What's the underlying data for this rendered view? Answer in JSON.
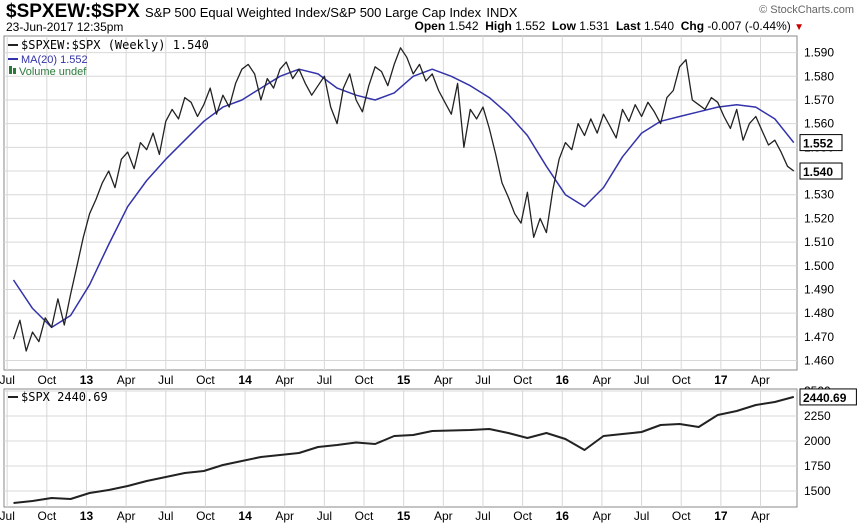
{
  "header": {
    "symbol": "$SPXEW:$SPX",
    "description": "S&P 500 Equal Weighted Index/S&P 500 Large Cap Index",
    "exchange": "INDX",
    "brand": "© StockCharts.com",
    "datetime": "23-Jun-2017 12:35pm",
    "open_label": "Open",
    "open": "1.542",
    "high_label": "High",
    "high": "1.552",
    "low_label": "Low",
    "low": "1.531",
    "last_label": "Last",
    "last": "1.540",
    "chg_label": "Chg",
    "chg": "-0.007 (-0.44%)",
    "chg_marker": "▼"
  },
  "colors": {
    "price": "#222222",
    "ma": "#3333aa",
    "grid": "#d8d8d8",
    "volume_legend": "#2a7a3a"
  },
  "chart_data": [
    {
      "type": "line",
      "legend": [
        "$SPXEW:$SPX (Weekly) 1.540",
        "MA(20) 1.552",
        "Volume undef"
      ],
      "series": [
        {
          "name": "$SPXEW:$SPX (Weekly)",
          "x": [
            2012.54,
            2012.58,
            2012.62,
            2012.66,
            2012.7,
            2012.74,
            2012.78,
            2012.82,
            2012.86,
            2012.9,
            2012.94,
            2012.98,
            2013.02,
            2013.06,
            2013.1,
            2013.14,
            2013.18,
            2013.22,
            2013.26,
            2013.3,
            2013.34,
            2013.38,
            2013.42,
            2013.46,
            2013.5,
            2013.54,
            2013.58,
            2013.62,
            2013.66,
            2013.7,
            2013.74,
            2013.78,
            2013.82,
            2013.86,
            2013.9,
            2013.94,
            2013.98,
            2014.02,
            2014.06,
            2014.1,
            2014.14,
            2014.18,
            2014.22,
            2014.26,
            2014.3,
            2014.34,
            2014.38,
            2014.42,
            2014.46,
            2014.5,
            2014.54,
            2014.58,
            2014.62,
            2014.66,
            2014.7,
            2014.74,
            2014.78,
            2014.82,
            2014.86,
            2014.9,
            2014.94,
            2014.98,
            2015.02,
            2015.06,
            2015.1,
            2015.14,
            2015.18,
            2015.22,
            2015.26,
            2015.3,
            2015.34,
            2015.38,
            2015.42,
            2015.46,
            2015.5,
            2015.54,
            2015.58,
            2015.62,
            2015.66,
            2015.7,
            2015.74,
            2015.78,
            2015.82,
            2015.86,
            2015.9,
            2015.94,
            2015.98,
            2016.02,
            2016.06,
            2016.1,
            2016.14,
            2016.18,
            2016.22,
            2016.26,
            2016.3,
            2016.34,
            2016.38,
            2016.42,
            2016.46,
            2016.5,
            2016.54,
            2016.58,
            2016.62,
            2016.66,
            2016.7,
            2016.74,
            2016.78,
            2016.82,
            2016.86,
            2016.9,
            2016.94,
            2016.98,
            2017.02,
            2017.06,
            2017.1,
            2017.14,
            2017.18,
            2017.22,
            2017.26,
            2017.3,
            2017.34,
            2017.38,
            2017.42,
            2017.46
          ],
          "values": [
            1.469,
            1.477,
            1.464,
            1.472,
            1.468,
            1.478,
            1.474,
            1.486,
            1.475,
            1.488,
            1.5,
            1.512,
            1.522,
            1.528,
            1.535,
            1.54,
            1.533,
            1.545,
            1.548,
            1.541,
            1.552,
            1.549,
            1.556,
            1.547,
            1.561,
            1.566,
            1.562,
            1.571,
            1.569,
            1.563,
            1.568,
            1.575,
            1.564,
            1.572,
            1.567,
            1.577,
            1.583,
            1.585,
            1.581,
            1.57,
            1.579,
            1.575,
            1.583,
            1.586,
            1.579,
            1.583,
            1.577,
            1.572,
            1.576,
            1.58,
            1.567,
            1.56,
            1.575,
            1.581,
            1.57,
            1.565,
            1.576,
            1.584,
            1.582,
            1.576,
            1.585,
            1.592,
            1.588,
            1.581,
            1.585,
            1.578,
            1.581,
            1.574,
            1.569,
            1.564,
            1.577,
            1.55,
            1.566,
            1.562,
            1.567,
            1.558,
            1.547,
            1.535,
            1.529,
            1.522,
            1.518,
            1.531,
            1.512,
            1.52,
            1.514,
            1.532,
            1.545,
            1.552,
            1.549,
            1.56,
            1.555,
            1.562,
            1.556,
            1.564,
            1.559,
            1.554,
            1.566,
            1.561,
            1.568,
            1.563,
            1.569,
            1.565,
            1.56,
            1.571,
            1.574,
            1.584,
            1.587,
            1.57,
            1.568,
            1.566,
            1.571,
            1.569,
            1.563,
            1.558,
            1.566,
            1.553,
            1.56,
            1.563,
            1.557,
            1.551,
            1.553,
            1.548,
            1.542,
            1.54
          ]
        },
        {
          "name": "MA(20)",
          "x": [
            2012.54,
            2012.66,
            2012.78,
            2012.9,
            2013.02,
            2013.14,
            2013.26,
            2013.38,
            2013.5,
            2013.62,
            2013.74,
            2013.86,
            2013.98,
            2014.1,
            2014.22,
            2014.34,
            2014.46,
            2014.58,
            2014.7,
            2014.82,
            2014.94,
            2015.06,
            2015.18,
            2015.3,
            2015.42,
            2015.54,
            2015.66,
            2015.78,
            2015.9,
            2016.02,
            2016.14,
            2016.26,
            2016.38,
            2016.5,
            2016.62,
            2016.74,
            2016.86,
            2016.98,
            2017.1,
            2017.22,
            2017.34,
            2017.46
          ],
          "values": [
            1.494,
            1.482,
            1.474,
            1.479,
            1.492,
            1.509,
            1.525,
            1.536,
            1.545,
            1.553,
            1.561,
            1.567,
            1.57,
            1.575,
            1.58,
            1.583,
            1.581,
            1.575,
            1.572,
            1.57,
            1.573,
            1.58,
            1.583,
            1.58,
            1.576,
            1.571,
            1.564,
            1.555,
            1.542,
            1.53,
            1.525,
            1.533,
            1.546,
            1.556,
            1.561,
            1.563,
            1.565,
            1.567,
            1.568,
            1.567,
            1.562,
            1.552
          ]
        }
      ],
      "y_ticks": [
        "1.460",
        "1.470",
        "1.480",
        "1.490",
        "1.500",
        "1.510",
        "1.520",
        "1.530",
        "1.540",
        "1.550",
        "1.560",
        "1.570",
        "1.580",
        "1.590"
      ],
      "ylim": [
        1.456,
        1.597
      ],
      "last_tag_price": "1.540",
      "last_tag_ma": "1.552",
      "grid": true,
      "legend_position": "top-left"
    },
    {
      "type": "line",
      "legend": [
        "$SPX 2440.69"
      ],
      "series": [
        {
          "name": "$SPX",
          "x": [
            2012.54,
            2012.66,
            2012.78,
            2012.9,
            2013.02,
            2013.14,
            2013.26,
            2013.38,
            2013.5,
            2013.62,
            2013.74,
            2013.86,
            2013.98,
            2014.1,
            2014.22,
            2014.34,
            2014.46,
            2014.58,
            2014.7,
            2014.82,
            2014.94,
            2015.06,
            2015.18,
            2015.3,
            2015.42,
            2015.54,
            2015.66,
            2015.78,
            2015.9,
            2016.02,
            2016.14,
            2016.26,
            2016.38,
            2016.5,
            2016.62,
            2016.74,
            2016.86,
            2016.98,
            2017.1,
            2017.22,
            2017.34,
            2017.46
          ],
          "values": [
            1380,
            1400,
            1430,
            1420,
            1480,
            1510,
            1550,
            1600,
            1640,
            1680,
            1700,
            1760,
            1800,
            1840,
            1860,
            1880,
            1940,
            1960,
            1985,
            1970,
            2050,
            2060,
            2100,
            2105,
            2110,
            2120,
            2080,
            2030,
            2080,
            2020,
            1910,
            2050,
            2070,
            2090,
            2160,
            2170,
            2140,
            2260,
            2300,
            2360,
            2390,
            2440.69
          ]
        }
      ],
      "y_ticks": [
        "1500",
        "1750",
        "2000",
        "2250",
        "2500"
      ],
      "ylim": [
        1340,
        2520
      ],
      "last_tag": "2440.69",
      "grid": true,
      "legend_position": "top-left"
    }
  ],
  "x_axis": {
    "ticks": [
      {
        "label": "Jul",
        "x": 2012.5
      },
      {
        "label": "Oct",
        "x": 2012.75
      },
      {
        "label": "13",
        "x": 2013.0,
        "bold": true
      },
      {
        "label": "Apr",
        "x": 2013.25
      },
      {
        "label": "Jul",
        "x": 2013.5
      },
      {
        "label": "Oct",
        "x": 2013.75
      },
      {
        "label": "14",
        "x": 2014.0,
        "bold": true
      },
      {
        "label": "Apr",
        "x": 2014.25
      },
      {
        "label": "Jul",
        "x": 2014.5
      },
      {
        "label": "Oct",
        "x": 2014.75
      },
      {
        "label": "15",
        "x": 2015.0,
        "bold": true
      },
      {
        "label": "Apr",
        "x": 2015.25
      },
      {
        "label": "Jul",
        "x": 2015.5
      },
      {
        "label": "Oct",
        "x": 2015.75
      },
      {
        "label": "16",
        "x": 2016.0,
        "bold": true
      },
      {
        "label": "Apr",
        "x": 2016.25
      },
      {
        "label": "Jul",
        "x": 2016.5
      },
      {
        "label": "Oct",
        "x": 2016.75
      },
      {
        "label": "17",
        "x": 2017.0,
        "bold": true
      },
      {
        "label": "Apr",
        "x": 2017.25
      }
    ],
    "range": [
      2012.48,
      2017.48
    ]
  }
}
